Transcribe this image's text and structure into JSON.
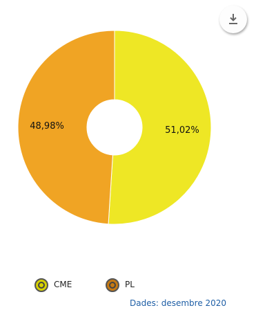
{
  "chart_data": {
    "type": "pie",
    "donut": true,
    "slices": [
      {
        "name": "CME",
        "value": 51.02,
        "label": "51,02%",
        "color": "#eee725"
      },
      {
        "name": "PL",
        "value": 48.98,
        "label": "48,98%",
        "color": "#f0a424"
      }
    ],
    "legend": {
      "position": "bottom",
      "items": [
        {
          "name": "CME",
          "color": "#d7d200"
        },
        {
          "name": "PL",
          "color": "#c77a12"
        }
      ]
    }
  },
  "source_note": "Dades: desembre 2020",
  "toolbar": {
    "download_icon": "download-icon"
  }
}
